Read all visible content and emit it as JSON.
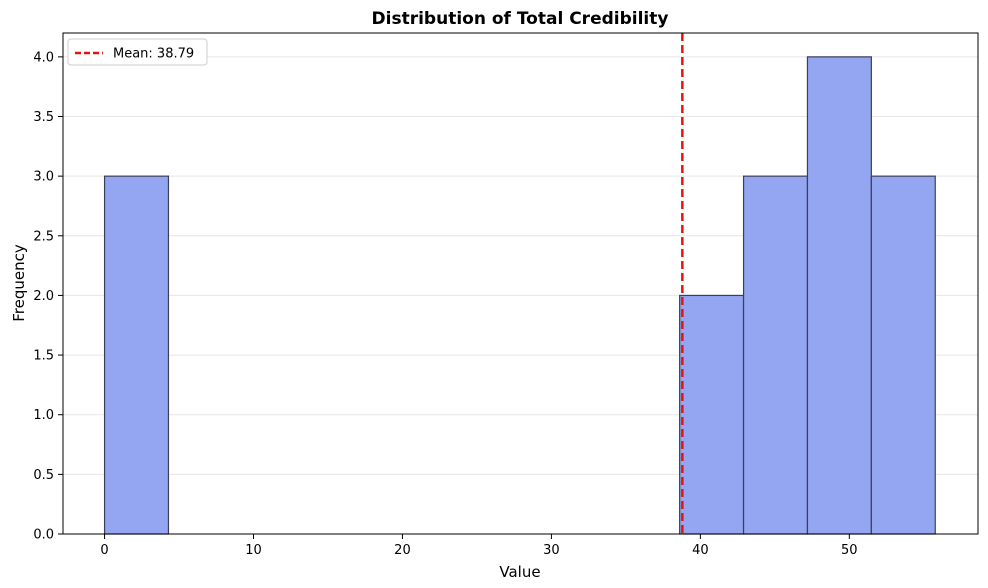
{
  "chart_data": {
    "type": "bar",
    "title": "Distribution of Total Credibility",
    "xlabel": "Value",
    "ylabel": "Frequency",
    "xlim": [
      -2.79,
      58.64
    ],
    "ylim": [
      0,
      4.2
    ],
    "x_ticks": [
      0,
      10,
      20,
      30,
      40,
      50
    ],
    "y_ticks": [
      0.0,
      0.5,
      1.0,
      1.5,
      2.0,
      2.5,
      3.0,
      3.5,
      4.0
    ],
    "x_tick_labels": [
      "0",
      "10",
      "20",
      "30",
      "40",
      "50"
    ],
    "y_tick_labels": [
      "0.0",
      "0.5",
      "1.0",
      "1.5",
      "2.0",
      "2.5",
      "3.0",
      "3.5",
      "4.0"
    ],
    "bins": [
      {
        "start": 0.0,
        "end": 4.29,
        "count": 3
      },
      {
        "start": 4.29,
        "end": 8.58,
        "count": 0
      },
      {
        "start": 8.58,
        "end": 12.87,
        "count": 0
      },
      {
        "start": 12.87,
        "end": 17.16,
        "count": 0
      },
      {
        "start": 17.16,
        "end": 21.45,
        "count": 0
      },
      {
        "start": 21.45,
        "end": 25.74,
        "count": 0
      },
      {
        "start": 25.74,
        "end": 30.03,
        "count": 0
      },
      {
        "start": 30.03,
        "end": 34.32,
        "count": 0
      },
      {
        "start": 34.32,
        "end": 38.61,
        "count": 0
      },
      {
        "start": 38.61,
        "end": 42.9,
        "count": 2
      },
      {
        "start": 42.9,
        "end": 47.19,
        "count": 3
      },
      {
        "start": 47.19,
        "end": 51.48,
        "count": 4
      },
      {
        "start": 51.48,
        "end": 55.77,
        "count": 3
      }
    ],
    "mean": 38.79,
    "mean_label": "Mean: 38.79",
    "legend_position": "top-left",
    "grid": "y",
    "colors": {
      "bar_fill": "#94a5f1",
      "bar_edge": "#3a3f55",
      "mean_line": "#e8140e",
      "grid": "#e6e6e6"
    }
  }
}
